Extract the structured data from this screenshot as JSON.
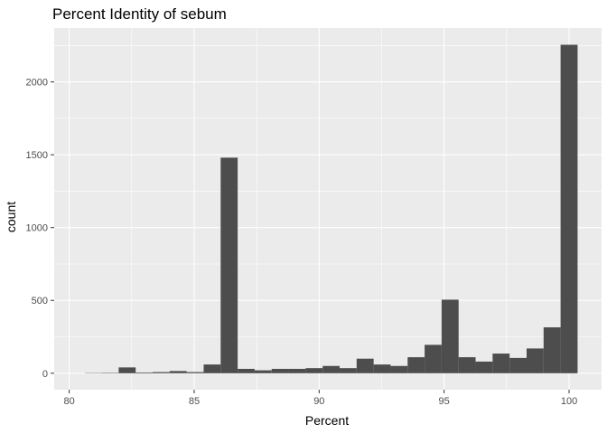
{
  "chart_data": {
    "type": "bar",
    "title": "Percent Identity of sebum",
    "xlabel": "Percent",
    "ylabel": "count",
    "xlim": [
      79.4,
      101.3
    ],
    "ylim": [
      -113,
      2370
    ],
    "x_ticks": [
      80,
      85,
      90,
      95,
      100
    ],
    "y_ticks": [
      0,
      500,
      1000,
      1500,
      2000
    ],
    "x_tick_labels": [
      "80",
      "85",
      "90",
      "95",
      "100"
    ],
    "y_tick_labels": [
      "0",
      "500",
      "1000",
      "1500",
      "2000"
    ],
    "grid": true,
    "bin_width": 0.68,
    "bins": [
      {
        "x": 80.96,
        "count": 2
      },
      {
        "x": 81.64,
        "count": 3
      },
      {
        "x": 82.32,
        "count": 40
      },
      {
        "x": 83.0,
        "count": 5
      },
      {
        "x": 83.68,
        "count": 8
      },
      {
        "x": 84.36,
        "count": 15
      },
      {
        "x": 85.04,
        "count": 8
      },
      {
        "x": 85.72,
        "count": 60
      },
      {
        "x": 86.4,
        "count": 1480
      },
      {
        "x": 87.08,
        "count": 30
      },
      {
        "x": 87.76,
        "count": 20
      },
      {
        "x": 88.44,
        "count": 30
      },
      {
        "x": 89.12,
        "count": 30
      },
      {
        "x": 89.8,
        "count": 35
      },
      {
        "x": 90.48,
        "count": 50
      },
      {
        "x": 91.16,
        "count": 35
      },
      {
        "x": 91.84,
        "count": 100
      },
      {
        "x": 92.52,
        "count": 60
      },
      {
        "x": 93.2,
        "count": 50
      },
      {
        "x": 93.88,
        "count": 110
      },
      {
        "x": 94.56,
        "count": 195
      },
      {
        "x": 95.24,
        "count": 505
      },
      {
        "x": 95.92,
        "count": 110
      },
      {
        "x": 96.6,
        "count": 80
      },
      {
        "x": 97.28,
        "count": 135
      },
      {
        "x": 97.96,
        "count": 105
      },
      {
        "x": 98.64,
        "count": 170
      },
      {
        "x": 99.32,
        "count": 315
      },
      {
        "x": 100.0,
        "count": 2255
      }
    ],
    "colors": {
      "panel": "#ebebeb",
      "grid_major": "#ffffff",
      "bar": "#4d4d4d",
      "tick": "#333333",
      "tick_label": "#4d4d4d"
    }
  }
}
